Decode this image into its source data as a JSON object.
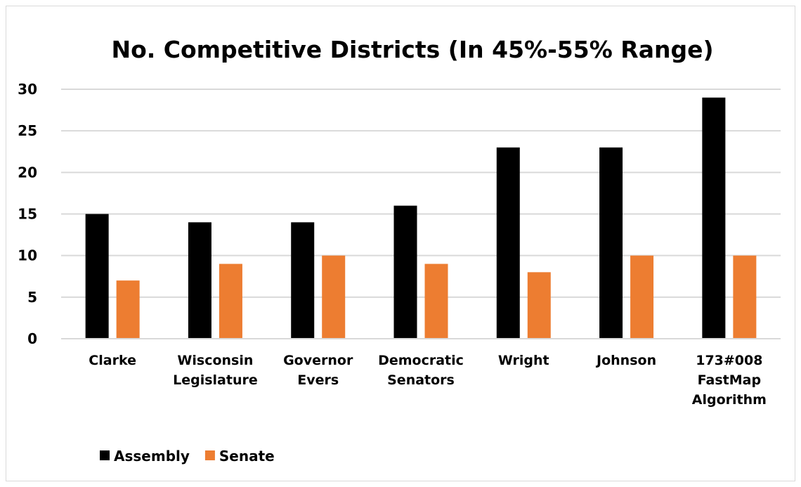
{
  "chart_data": {
    "type": "bar",
    "title": "No. Competitive Districts (In 45%-55% Range)",
    "xlabel": "",
    "ylabel": "",
    "categories": [
      [
        "Clarke"
      ],
      [
        "Wisconsin",
        "Legislature"
      ],
      [
        "Governor",
        "Evers"
      ],
      [
        "Democratic",
        "Senators"
      ],
      [
        "Wright"
      ],
      [
        "Johnson"
      ],
      [
        "173#008",
        "FastMap",
        "Algorithm"
      ]
    ],
    "series": [
      {
        "name": "Assembly",
        "color": "#000000",
        "values": [
          15,
          14,
          14,
          16,
          23,
          23,
          29
        ]
      },
      {
        "name": "Senate",
        "color": "#ED7D31",
        "values": [
          7,
          9,
          10,
          9,
          8,
          10,
          10
        ]
      }
    ],
    "ylim": [
      0,
      30
    ],
    "yticks": [
      0,
      5,
      10,
      15,
      20,
      25,
      30
    ],
    "grid": true,
    "gridColor": "#d9d9d9",
    "legend": "bottom-left"
  }
}
